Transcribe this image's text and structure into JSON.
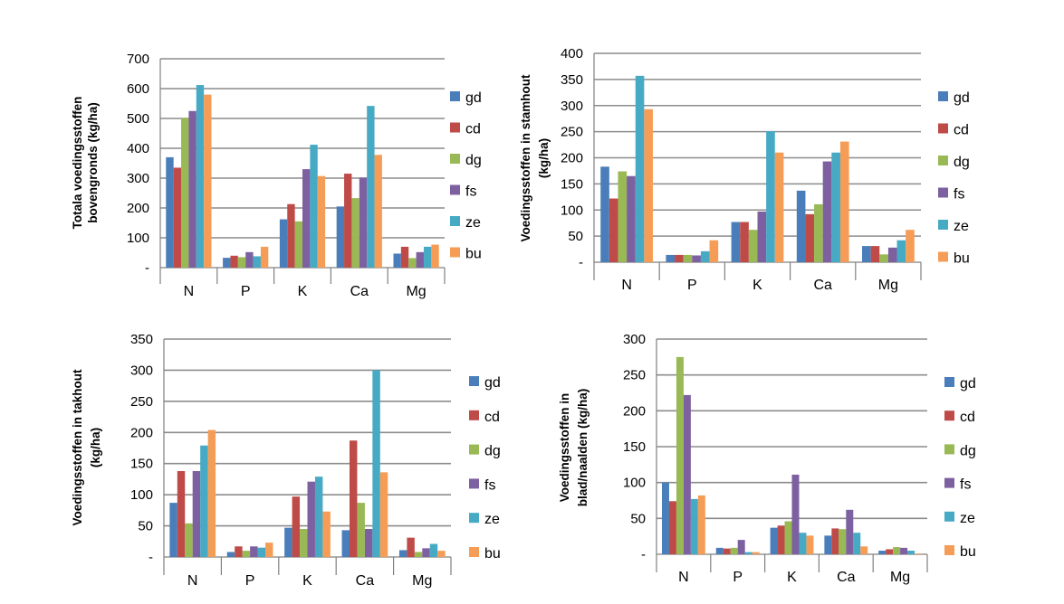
{
  "colors": {
    "gd": "#4a7ebb",
    "cd": "#be4b48",
    "dg": "#98b954",
    "fs": "#7d60a0",
    "ze": "#46aac5",
    "bu": "#f59d56",
    "axis": "#808080",
    "grid": "#8c8c8c"
  },
  "chart_data": [
    {
      "type": "bar",
      "ylabel_lines": [
        "Totala voedingsstoffen",
        "bovengronds (kg/ha)"
      ],
      "categories": [
        "N",
        "P",
        "K",
        "Ca",
        "Mg"
      ],
      "ylim": [
        0,
        700
      ],
      "yticks": [
        "-",
        "100",
        "200",
        "300",
        "400",
        "500",
        "600",
        "700"
      ],
      "grid": true,
      "legend_position": "right",
      "series": [
        {
          "name": "gd",
          "values": [
            370,
            33,
            162,
            205,
            47
          ]
        },
        {
          "name": "cd",
          "values": [
            335,
            40,
            213,
            315,
            70
          ]
        },
        {
          "name": "dg",
          "values": [
            502,
            35,
            155,
            233,
            32
          ]
        },
        {
          "name": "fs",
          "values": [
            525,
            52,
            330,
            302,
            52
          ]
        },
        {
          "name": "ze",
          "values": [
            612,
            38,
            412,
            542,
            70
          ]
        },
        {
          "name": "bu",
          "values": [
            580,
            70,
            307,
            378,
            77
          ]
        }
      ]
    },
    {
      "type": "bar",
      "ylabel_lines": [
        "Voedingsstoffen in stamhout",
        "(kg/ha)"
      ],
      "categories": [
        "N",
        "P",
        "K",
        "Ca",
        "Mg"
      ],
      "ylim": [
        0,
        400
      ],
      "yticks": [
        "-",
        "50",
        "100",
        "150",
        "200",
        "250",
        "300",
        "350",
        "400"
      ],
      "grid": true,
      "legend_position": "right",
      "series": [
        {
          "name": "gd",
          "values": [
            183,
            14,
            77,
            137,
            31
          ]
        },
        {
          "name": "cd",
          "values": [
            122,
            14,
            77,
            92,
            31
          ]
        },
        {
          "name": "dg",
          "values": [
            174,
            14,
            62,
            111,
            15
          ]
        },
        {
          "name": "fs",
          "values": [
            165,
            13,
            97,
            193,
            28
          ]
        },
        {
          "name": "ze",
          "values": [
            357,
            21,
            251,
            210,
            42
          ]
        },
        {
          "name": "bu",
          "values": [
            293,
            42,
            210,
            231,
            62
          ]
        }
      ]
    },
    {
      "type": "bar",
      "ylabel_lines": [
        "Voedingsstoffen in takhout",
        "(kg/ha)"
      ],
      "categories": [
        "N",
        "P",
        "K",
        "Ca",
        "Mg"
      ],
      "ylim": [
        0,
        350
      ],
      "yticks": [
        "-",
        "50",
        "100",
        "150",
        "200",
        "250",
        "300",
        "350"
      ],
      "grid": true,
      "legend_position": "right",
      "series": [
        {
          "name": "gd",
          "values": [
            87,
            8,
            47,
            43,
            11
          ]
        },
        {
          "name": "cd",
          "values": [
            138,
            17,
            97,
            187,
            31
          ]
        },
        {
          "name": "dg",
          "values": [
            54,
            10,
            45,
            87,
            8
          ]
        },
        {
          "name": "fs",
          "values": [
            138,
            17,
            121,
            45,
            14
          ]
        },
        {
          "name": "ze",
          "values": [
            179,
            15,
            129,
            300,
            21
          ]
        },
        {
          "name": "bu",
          "values": [
            204,
            23,
            73,
            136,
            10
          ]
        }
      ]
    },
    {
      "type": "bar",
      "ylabel_lines": [
        "Voedingsstoffen in",
        "blad/naalden (kg/ha)"
      ],
      "categories": [
        "N",
        "P",
        "K",
        "Ca",
        "Mg"
      ],
      "ylim": [
        0,
        300
      ],
      "yticks": [
        "-",
        "50",
        "100",
        "150",
        "200",
        "250",
        "300"
      ],
      "grid": true,
      "legend_position": "right",
      "series": [
        {
          "name": "gd",
          "values": [
            100,
            9,
            37,
            26,
            5
          ]
        },
        {
          "name": "cd",
          "values": [
            74,
            8,
            40,
            36,
            7
          ]
        },
        {
          "name": "dg",
          "values": [
            275,
            9,
            46,
            35,
            10
          ]
        },
        {
          "name": "fs",
          "values": [
            222,
            20,
            111,
            62,
            9
          ]
        },
        {
          "name": "ze",
          "values": [
            77,
            3,
            30,
            30,
            5
          ]
        },
        {
          "name": "bu",
          "values": [
            82,
            3,
            26,
            11,
            1
          ]
        }
      ]
    }
  ]
}
